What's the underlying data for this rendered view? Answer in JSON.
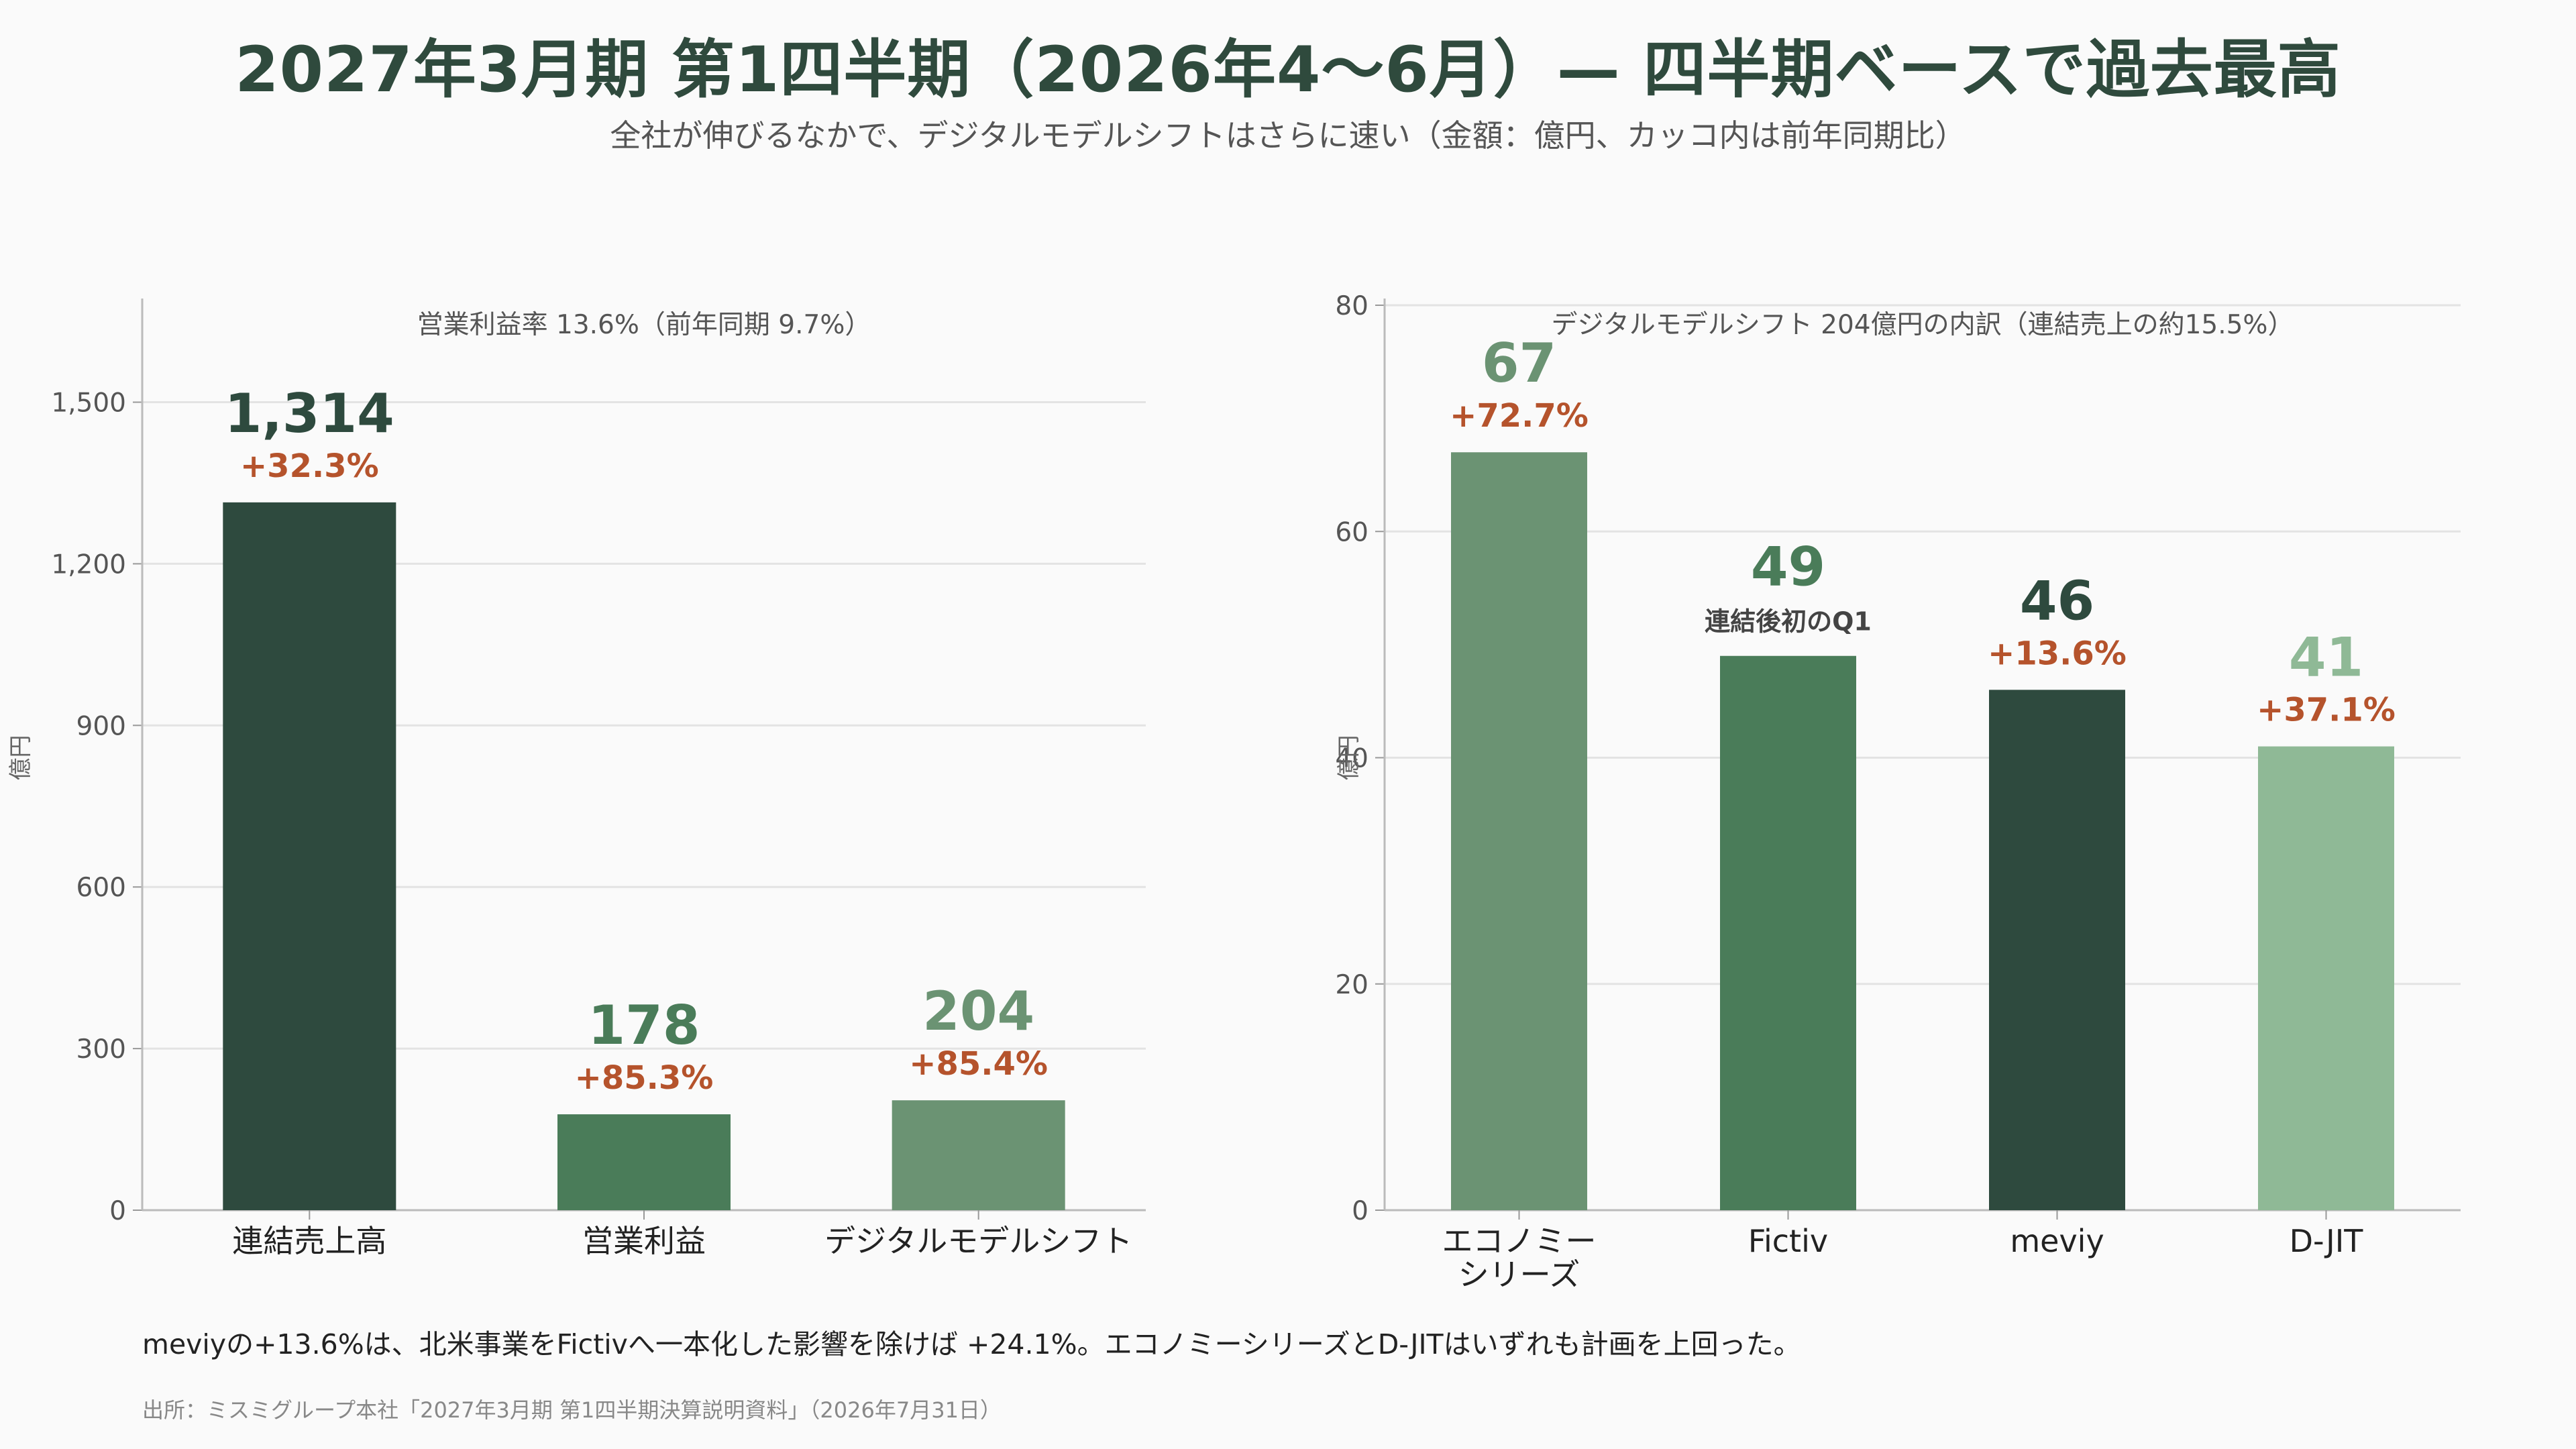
{
  "header": {
    "title": "2027年3月期 第1四半期（2026年4〜6月）— 四半期ベースで過去最高",
    "subtitle": "全社が伸びるなかで、デジタルモデルシフトはさらに速い（金額：億円、カッコ内は前年同期比）"
  },
  "chart_data": [
    {
      "type": "bar",
      "title": "営業利益率 13.6%（前年同期 9.7%）",
      "xlabel": "",
      "ylabel": "億円",
      "ylim": [
        0,
        1680
      ],
      "yticks": [
        0,
        300,
        600,
        900,
        1200,
        1500
      ],
      "ytick_labels": [
        "0",
        "300",
        "600",
        "900",
        "1,200",
        "1,500"
      ],
      "grid": true,
      "categories": [
        "連結売上高",
        "営業利益",
        "デジタルモデルシフト"
      ],
      "values": [
        1314,
        178,
        204
      ],
      "value_labels": [
        "1,314",
        "178",
        "204"
      ],
      "change_labels": [
        "+32.3%",
        "+85.3%",
        "+85.4%"
      ],
      "colors": [
        "#2e4a3e",
        "#4a7c59",
        "#6b9373"
      ]
    },
    {
      "type": "bar",
      "title": "デジタルモデルシフト 204億円の内訳（連結売上の約15.5%）",
      "xlabel": "",
      "ylabel": "億円",
      "ylim": [
        0,
        80
      ],
      "yticks": [
        0,
        20,
        40,
        60,
        80
      ],
      "ytick_labels": [
        "0",
        "20",
        "40",
        "60",
        "80"
      ],
      "grid": true,
      "categories": [
        [
          "エコノミー",
          "シリーズ"
        ],
        [
          "Fictiv"
        ],
        [
          "meviy"
        ],
        [
          "D-JIT"
        ]
      ],
      "values": [
        67,
        49,
        46,
        41
      ],
      "value_labels": [
        "67",
        "49",
        "46",
        "41"
      ],
      "change_labels": [
        "+72.7%",
        "連結後初のQ1",
        "+13.6%",
        "+37.1%"
      ],
      "colors": [
        "#6b9373",
        "#4a7c59",
        "#2e4a3e",
        "#8fb996"
      ]
    }
  ],
  "note": "meviyの+13.6%は、北米事業をFictivへ一本化した影響を除けば +24.1%。エコノミーシリーズとD-JITはいずれも計画を上回った。",
  "source": "出所：ミスミグループ本社「2027年3月期 第1四半期決算説明資料」（2026年7月31日）"
}
